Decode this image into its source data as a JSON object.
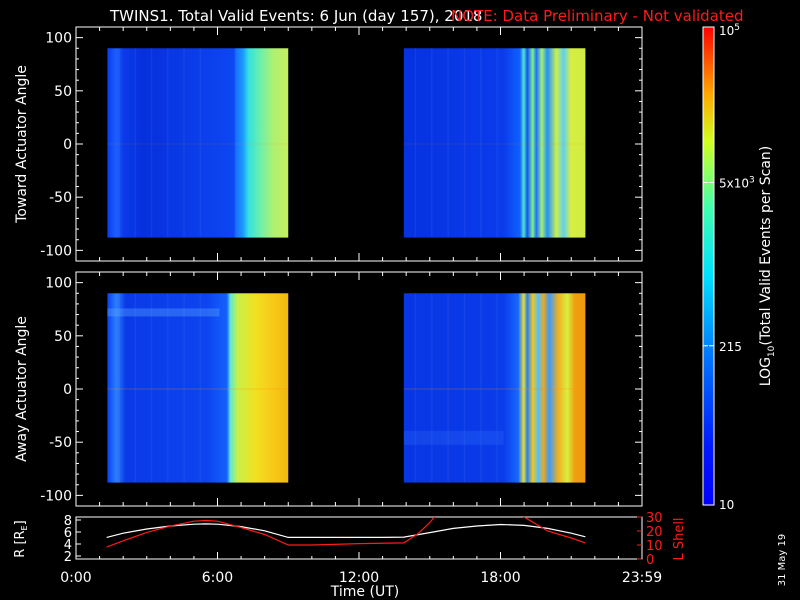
{
  "header": {
    "title": "TWINS1. Total Valid Events:  6 Jun (day 157), 2018",
    "note": "NOTE: Data Preliminary - Not validated",
    "note_color": "#ff1a1a"
  },
  "footer": {
    "stamp": "31 May 19"
  },
  "chart_data": [
    {
      "type": "heatmap",
      "panel": "top",
      "ylabel": "Toward Actuator Angle",
      "yticks": [
        100,
        50,
        0,
        -50,
        -100
      ],
      "ylim": [
        -110,
        110
      ],
      "x_domain_hours": [
        0,
        24
      ],
      "angle_range": [
        -88,
        90
      ],
      "data_intervals_hours": [
        [
          1.33,
          9.0
        ],
        [
          13.9,
          21.6
        ]
      ],
      "colorbar": {
        "label": "LOG10(Total Valid Events per Scan)",
        "scale": "log",
        "range": [
          10,
          100000
        ],
        "ticks": [
          "10",
          "215",
          "5x10^3",
          "10^5"
        ]
      }
    },
    {
      "type": "heatmap",
      "panel": "bottom",
      "ylabel": "Away Actuator Angle",
      "yticks": [
        100,
        50,
        0,
        -50,
        -100
      ],
      "ylim": [
        -110,
        110
      ],
      "x_domain_hours": [
        0,
        24
      ],
      "angle_range": [
        -88,
        90
      ],
      "data_intervals_hours": [
        [
          1.33,
          9.0
        ],
        [
          13.9,
          21.6
        ]
      ]
    },
    {
      "type": "line",
      "panel": "ephemeris",
      "xlabel": "Time (UT)",
      "xticks": [
        "0:00",
        "6:00",
        "12:00",
        "18:00",
        "23:59"
      ],
      "y_left": {
        "label": "R [RE]",
        "ticks": [
          2,
          4,
          6,
          8
        ],
        "range": [
          1.5,
          8.5
        ],
        "color": "#ffffff"
      },
      "y_right": {
        "label": "L Shell",
        "ticks": [
          0,
          10,
          20,
          30
        ],
        "range": [
          0,
          30
        ],
        "color": "#ff1a1a"
      },
      "series": [
        {
          "axis": "left",
          "color": "#ffffff",
          "x": [
            1.3,
            2.0,
            3.0,
            4.0,
            5.0,
            5.5,
            6.0,
            7.0,
            8.0,
            9.0,
            11.0,
            13.0,
            13.9,
            15.0,
            16.0,
            17.0,
            18.0,
            19.0,
            20.0,
            21.0,
            21.6
          ],
          "y": [
            5.1,
            5.8,
            6.5,
            7.0,
            7.3,
            7.35,
            7.3,
            6.9,
            6.2,
            5.1,
            5.1,
            5.1,
            5.15,
            5.9,
            6.6,
            7.0,
            7.25,
            7.1,
            6.6,
            5.8,
            5.2
          ]
        },
        {
          "axis": "right",
          "color": "#ff1a1a",
          "segments": [
            {
              "x": [
                1.3,
                2.0,
                3.0,
                4.0,
                5.0,
                5.5,
                6.0,
                7.0,
                7.5,
                8.0,
                9.0,
                10.0,
                12.0,
                13.9,
                14.5,
                15.0,
                15.3
              ],
              "y": [
                8.5,
                13.0,
                19.0,
                23.5,
                27.0,
                27.5,
                27.0,
                22.5,
                20.0,
                17.5,
                10.0,
                10.0,
                11.0,
                11.5,
                18.0,
                26.0,
                32.0
              ]
            },
            {
              "x": [
                18.8,
                19.5,
                20.0,
                21.0,
                21.6
              ],
              "y": [
                32.0,
                25.0,
                20.0,
                15.0,
                11.5
              ]
            }
          ]
        }
      ]
    }
  ]
}
